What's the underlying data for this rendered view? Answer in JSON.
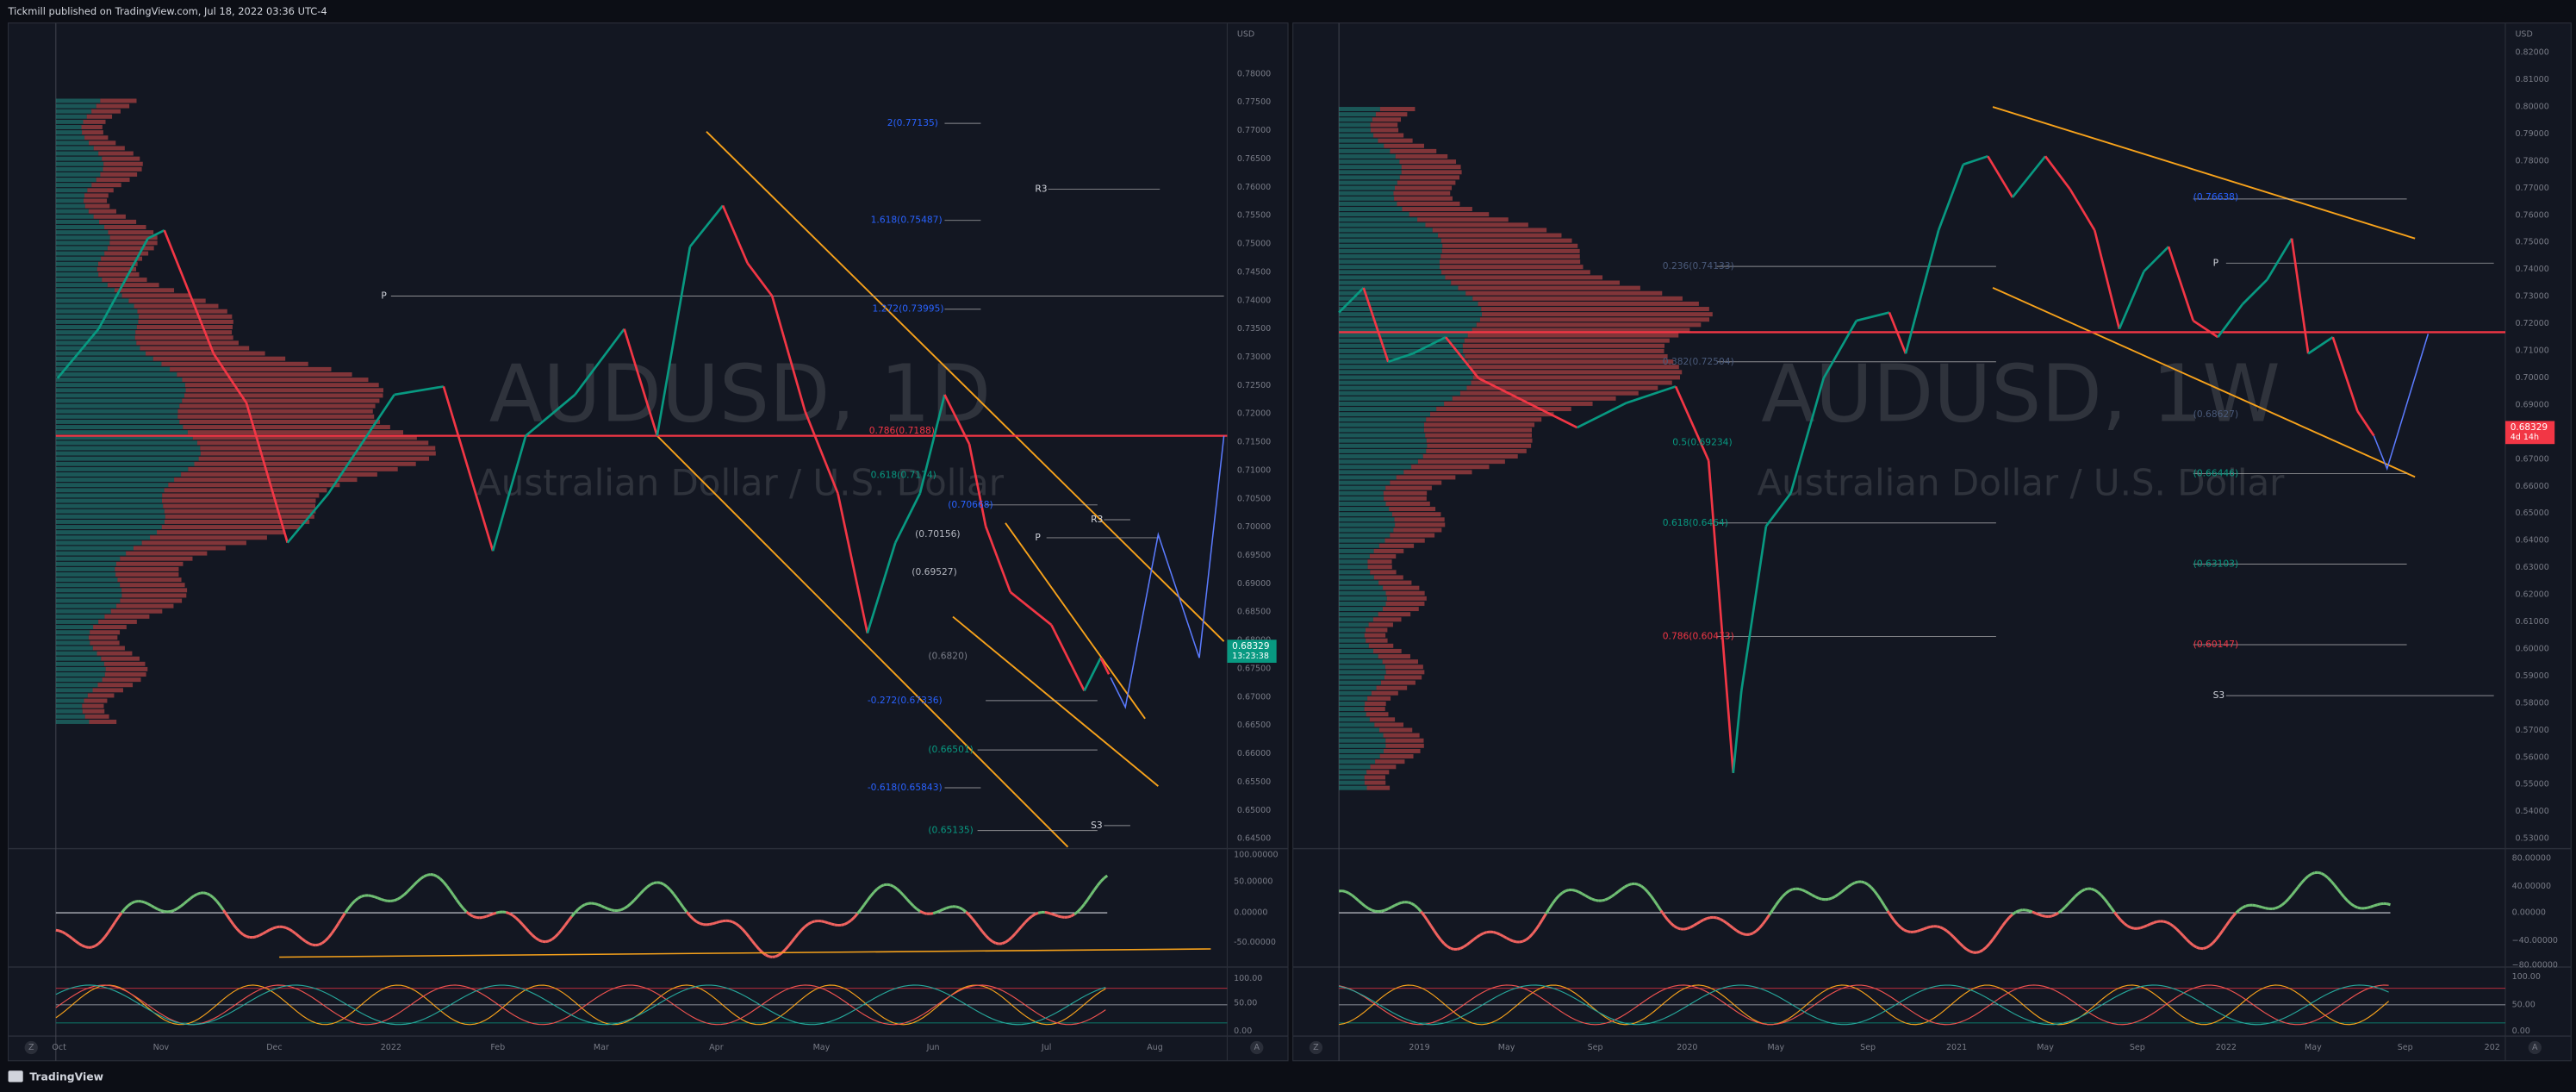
{
  "header": {
    "publisher": "Tickmill published on TradingView.com, Jul 18, 2022 03:36 UTC-4"
  },
  "left_panel": {
    "symbol": "AUDUSD, 1D",
    "description": "Australian Dollar / U.S. Dollar",
    "currency": "USD",
    "price_axis": [
      "0.78000",
      "0.77500",
      "0.77000",
      "0.76500",
      "0.76000",
      "0.75500",
      "0.75000",
      "0.74500",
      "0.74000",
      "0.73500",
      "0.73000",
      "0.72500",
      "0.72000",
      "0.71500",
      "0.71000",
      "0.70500",
      "0.70000",
      "0.69500",
      "0.69000",
      "0.68500",
      "0.68000",
      "0.67500",
      "0.67000",
      "0.66500",
      "0.66000",
      "0.65500",
      "0.65000",
      "0.64500"
    ],
    "price_tag": {
      "price": "0.68329",
      "countdown": "13:23:38"
    },
    "rsi_axis": [
      "100.00000",
      "50.00000",
      "0.00000",
      "-50.00000"
    ],
    "stoch_axis": [
      "100.00",
      "50.00",
      "0.00"
    ],
    "time_axis": [
      "Oct",
      "Nov",
      "Dec",
      "2022",
      "Feb",
      "Mar",
      "Apr",
      "May",
      "Jun",
      "Jul",
      "Aug"
    ],
    "levels": [
      "2(0.77135)",
      "1.618(0.75487)",
      "1.272(0.73995)",
      "0.786(0.7188)",
      "0.618(0.7174)",
      "(0.70668)",
      "(0.70156)",
      "(0.69527)",
      "(0.6820)",
      "-0.272(0.67336)",
      "(0.66501)",
      "-0.618(0.65843)",
      "(0.65135)"
    ],
    "pivots": [
      "P",
      "R3",
      "R3",
      "P",
      "S3"
    ],
    "buttons": [
      "Z",
      "A"
    ]
  },
  "right_panel": {
    "symbol": "AUDUSD, 1W",
    "description": "Australian Dollar / U.S. Dollar",
    "currency": "USD",
    "price_axis": [
      "0.82000",
      "0.81000",
      "0.80000",
      "0.79000",
      "0.78000",
      "0.77000",
      "0.76000",
      "0.75000",
      "0.74000",
      "0.73000",
      "0.72000",
      "0.71000",
      "0.70000",
      "0.69000",
      "0.68000",
      "0.67000",
      "0.66000",
      "0.65000",
      "0.64000",
      "0.63000",
      "0.62000",
      "0.61000",
      "0.60000",
      "0.59000",
      "0.58000",
      "0.57000",
      "0.56000",
      "0.55000",
      "0.54000",
      "0.53000"
    ],
    "price_tag": {
      "price": "0.68329",
      "countdown": "4d 14h"
    },
    "rsi_axis": [
      "80.00000",
      "40.00000",
      "0.00000",
      "−40.00000",
      "−80.00000"
    ],
    "stoch_axis": [
      "100.00",
      "50.00",
      "0.00"
    ],
    "time_axis": [
      "2019",
      "May",
      "Sep",
      "2020",
      "May",
      "Sep",
      "2021",
      "May",
      "Sep",
      "2022",
      "May",
      "Sep",
      "202"
    ],
    "levels": [
      "(0.76638)",
      "0.236(0.74133)",
      "0.382(0.72504)",
      "(0.68627)",
      "0.5(0.69234)",
      "(0.66446)",
      "0.618(0.6464)",
      "(0.63103)",
      "0.786(0.60473)",
      "(0.60147)"
    ],
    "pivots": [
      "P",
      "S3"
    ],
    "buttons": [
      "Z",
      "A"
    ]
  },
  "footer": {
    "brand": "TradingView"
  }
}
